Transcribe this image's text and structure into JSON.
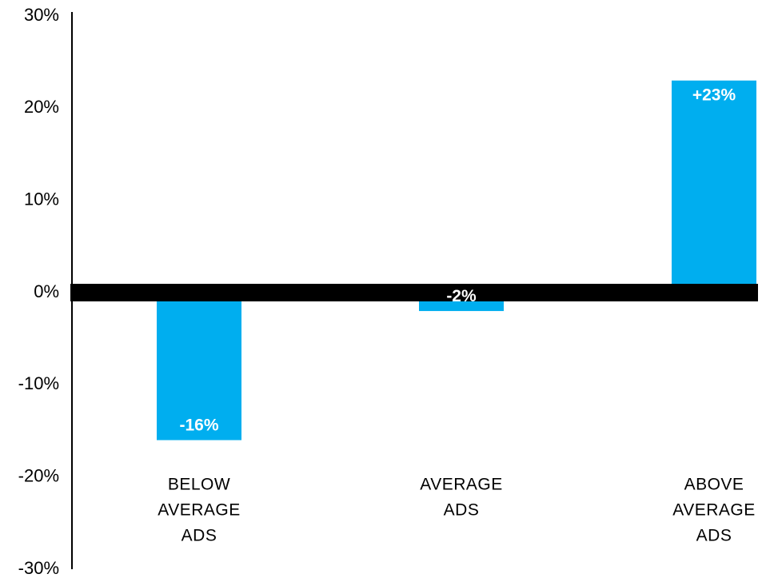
{
  "chart_data": {
    "type": "bar",
    "categories": [
      [
        "BELOW",
        "AVERAGE",
        "ADS"
      ],
      [
        "AVERAGE",
        "ADS"
      ],
      [
        "ABOVE",
        "AVERAGE",
        "ADS"
      ]
    ],
    "values": [
      -16,
      -2,
      23
    ],
    "data_labels": [
      "-16%",
      "-2%",
      "+23%"
    ],
    "yticks": [
      "30%",
      "20%",
      "10%",
      "0%",
      "-10%",
      "-20%",
      "-30%"
    ],
    "ytick_values": [
      30,
      20,
      10,
      0,
      -10,
      -20,
      -30
    ],
    "ylim": [
      -30,
      30
    ],
    "title": "",
    "xlabel": "",
    "ylabel": "",
    "grid": false,
    "colors": {
      "bar": "#00aeef",
      "zero_line": "#000000",
      "axis": "#000000",
      "data_label": "#ffffff"
    }
  }
}
